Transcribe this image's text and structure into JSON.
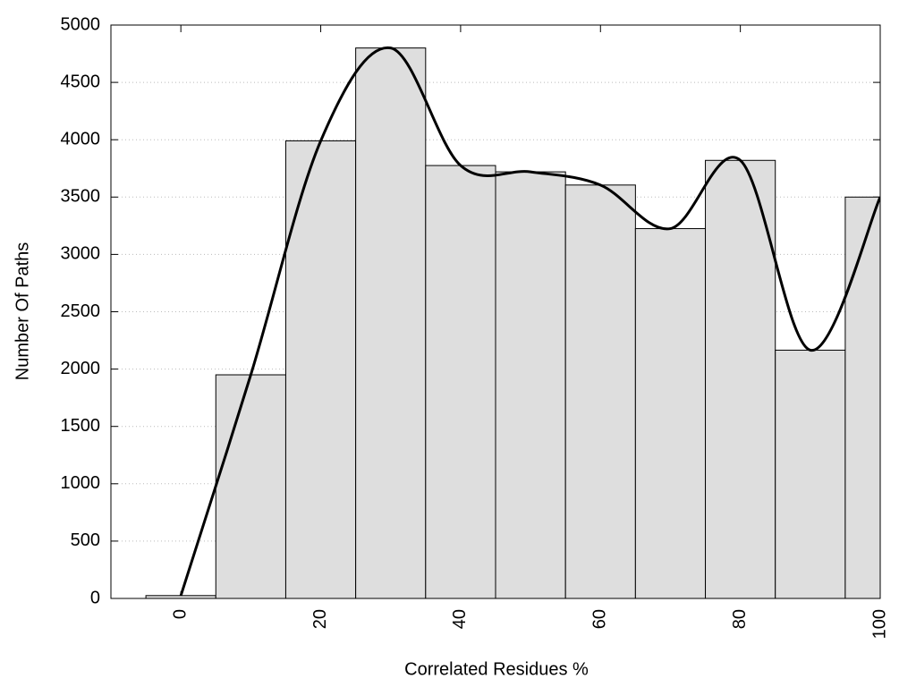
{
  "chart_data": {
    "type": "histogram",
    "xlabel": "Correlated Residues %",
    "ylabel": "Number Of Paths",
    "bins": [
      -5,
      5,
      15,
      25,
      35,
      45,
      55,
      65,
      75,
      85,
      95,
      105
    ],
    "counts": [
      25,
      1950,
      3990,
      4800,
      3775,
      3720,
      3605,
      3225,
      3820,
      2165,
      3500
    ],
    "color": "#dedede",
    "edgecolor": "#000000",
    "curve": true,
    "curve_color": "#000000",
    "xlim": [
      -10,
      100
    ],
    "xticks": [
      0,
      20,
      40,
      60,
      80,
      100
    ],
    "ylim": [
      0,
      5000
    ],
    "yticks": [
      0,
      500,
      1000,
      1500,
      2000,
      2500,
      3000,
      3500,
      4000,
      4500,
      5000
    ],
    "grid": true
  }
}
